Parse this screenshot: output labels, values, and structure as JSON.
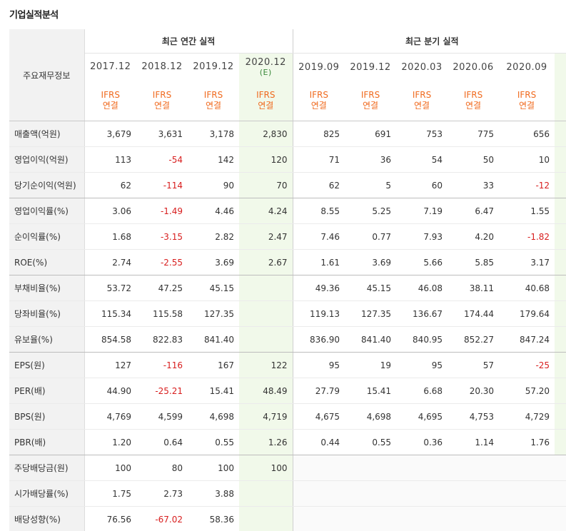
{
  "title": "기업실적분석",
  "header": {
    "row_label": "주요재무정보",
    "annual_group": "최근 연간 실적",
    "quarter_group": "최근 분기 실적",
    "annual_periods": [
      {
        "ym": "2017.12",
        "est": ""
      },
      {
        "ym": "2018.12",
        "est": ""
      },
      {
        "ym": "2019.12",
        "est": ""
      },
      {
        "ym": "2020.12",
        "est": "(E)"
      }
    ],
    "quarter_periods": [
      {
        "ym": "2019.09"
      },
      {
        "ym": "2019.12"
      },
      {
        "ym": "2020.03"
      },
      {
        "ym": "2020.06"
      },
      {
        "ym": "2020.09"
      }
    ],
    "accounting_line1": "IFRS",
    "accounting_line2": "연결"
  },
  "rows": [
    {
      "label": "매출액(억원)",
      "annual": [
        "3,679",
        "3,631",
        "3,178",
        "2,830"
      ],
      "quarter": [
        "825",
        "691",
        "753",
        "775",
        "656"
      ]
    },
    {
      "label": "영업이익(억원)",
      "annual": [
        "113",
        "-54",
        "142",
        "120"
      ],
      "quarter": [
        "71",
        "36",
        "54",
        "50",
        "10"
      ]
    },
    {
      "label": "당기순이익(억원)",
      "annual": [
        "62",
        "-114",
        "90",
        "70"
      ],
      "quarter": [
        "62",
        "5",
        "60",
        "33",
        "-12"
      ]
    },
    {
      "label": "영업이익률(%)",
      "annual": [
        "3.06",
        "-1.49",
        "4.46",
        "4.24"
      ],
      "quarter": [
        "8.55",
        "5.25",
        "7.19",
        "6.47",
        "1.55"
      ]
    },
    {
      "label": "순이익률(%)",
      "annual": [
        "1.68",
        "-3.15",
        "2.82",
        "2.47"
      ],
      "quarter": [
        "7.46",
        "0.77",
        "7.93",
        "4.20",
        "-1.82"
      ]
    },
    {
      "label": "ROE(%)",
      "annual": [
        "2.74",
        "-2.55",
        "3.69",
        "2.67"
      ],
      "quarter": [
        "1.61",
        "3.69",
        "5.66",
        "5.85",
        "3.17"
      ]
    },
    {
      "label": "부채비율(%)",
      "annual": [
        "53.72",
        "47.25",
        "45.15",
        ""
      ],
      "quarter": [
        "49.36",
        "45.15",
        "46.08",
        "38.11",
        "40.68"
      ]
    },
    {
      "label": "당좌비율(%)",
      "annual": [
        "115.34",
        "115.58",
        "127.35",
        ""
      ],
      "quarter": [
        "119.13",
        "127.35",
        "136.67",
        "174.44",
        "179.64"
      ]
    },
    {
      "label": "유보율(%)",
      "annual": [
        "854.58",
        "822.83",
        "841.40",
        ""
      ],
      "quarter": [
        "836.90",
        "841.40",
        "840.95",
        "852.27",
        "847.24"
      ]
    },
    {
      "label": "EPS(원)",
      "annual": [
        "127",
        "-116",
        "167",
        "122"
      ],
      "quarter": [
        "95",
        "19",
        "95",
        "57",
        "-25"
      ]
    },
    {
      "label": "PER(배)",
      "annual": [
        "44.90",
        "-25.21",
        "15.41",
        "48.49"
      ],
      "quarter": [
        "27.79",
        "15.41",
        "6.68",
        "20.30",
        "57.20"
      ]
    },
    {
      "label": "BPS(원)",
      "annual": [
        "4,769",
        "4,599",
        "4,698",
        "4,719"
      ],
      "quarter": [
        "4,675",
        "4,698",
        "4,695",
        "4,753",
        "4,729"
      ]
    },
    {
      "label": "PBR(배)",
      "annual": [
        "1.20",
        "0.64",
        "0.55",
        "1.26"
      ],
      "quarter": [
        "0.44",
        "0.55",
        "0.36",
        "1.14",
        "1.76"
      ]
    },
    {
      "label": "주당배당금(원)",
      "annual": [
        "100",
        "80",
        "100",
        "100"
      ],
      "quarter": [
        "",
        "",
        "",
        "",
        ""
      ]
    },
    {
      "label": "시가배당률(%)",
      "annual": [
        "1.75",
        "2.73",
        "3.88",
        ""
      ],
      "quarter": [
        "",
        "",
        "",
        "",
        ""
      ]
    },
    {
      "label": "배당성향(%)",
      "annual": [
        "76.56",
        "-67.02",
        "58.36",
        ""
      ],
      "quarter": [
        "",
        "",
        "",
        "",
        ""
      ]
    }
  ]
}
